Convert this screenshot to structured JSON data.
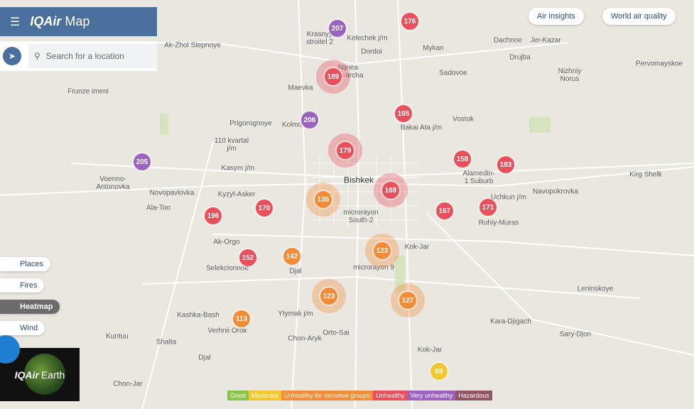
{
  "header": {
    "brand": "IQAir",
    "product": "Map"
  },
  "search": {
    "placeholder": "Search for a location"
  },
  "top_buttons": [
    "Air insights",
    "World air quality"
  ],
  "layers": [
    "Places",
    "Fires",
    "Heatmap",
    "Wind"
  ],
  "earth": {
    "brand": "IQAir",
    "product": "Earth"
  },
  "places": [
    "Ak-Zhol Stepnoye",
    "Krasnyy\nstroitel 2",
    "Kelechek j/m",
    "Dordoi",
    "Mykan",
    "Dachnoe",
    "Jer-Kazar",
    "Drujba",
    "Pervomayskoe",
    "Nizhniy\nNorus",
    "Sadovoe",
    "Nijnea\nAla-archa",
    "Maevka",
    "Frunze imeni",
    "Prigorognoye",
    "Kolmo",
    "Vostok",
    "Bakai Ata j/m",
    "110 kvartal\nj/m",
    "Kasym j/m",
    "Bishkek",
    "Voenno-\nAntonovka",
    "Novopavlovka",
    "Kyzyl-Asker",
    "Ala-Too",
    "Alamedin-\n1 Suburb",
    "Kirg Shelk",
    "Navopokrovka",
    "Uchkun j/m",
    "Ruhiy-Muras",
    "microrayon\nSouth-2",
    "Ak-Orgo",
    "Selekcionnoe",
    "Kok-Jar",
    "microrayon 9",
    "Djal",
    "Leninskoye",
    "Kashka-Bash",
    "Ytymak j/m",
    "Verhnii Orok",
    "Kuntuu",
    "Orto-Sai",
    "Kara-Djigach",
    "Sary-Djon",
    "Shalta",
    "Chon-Aryk",
    "Kok-Jar",
    "Djal",
    "Chon-Jar"
  ],
  "markers": [
    {
      "aqi": "207",
      "color": "#9b63c0"
    },
    {
      "aqi": "176",
      "color": "#e8505b"
    },
    {
      "aqi": "189",
      "color": "#e8505b"
    },
    {
      "aqi": "165",
      "color": "#e8505b"
    },
    {
      "aqi": "206",
      "color": "#9b63c0"
    },
    {
      "aqi": "179",
      "color": "#e8505b"
    },
    {
      "aqi": "205",
      "color": "#9b63c0"
    },
    {
      "aqi": "158",
      "color": "#e8505b"
    },
    {
      "aqi": "183",
      "color": "#e8505b"
    },
    {
      "aqi": "168",
      "color": "#e8505b"
    },
    {
      "aqi": "135",
      "color": "#f08c3a"
    },
    {
      "aqi": "170",
      "color": "#e8505b"
    },
    {
      "aqi": "196",
      "color": "#e8505b"
    },
    {
      "aqi": "167",
      "color": "#e8505b"
    },
    {
      "aqi": "171",
      "color": "#e8505b"
    },
    {
      "aqi": "123",
      "color": "#f08c3a"
    },
    {
      "aqi": "152",
      "color": "#e8505b"
    },
    {
      "aqi": "142",
      "color": "#f08c3a"
    },
    {
      "aqi": "123",
      "color": "#f08c3a"
    },
    {
      "aqi": "127",
      "color": "#f08c3a"
    },
    {
      "aqi": "113",
      "color": "#f08c3a"
    },
    {
      "aqi": "69",
      "color": "#f2c730"
    }
  ],
  "legend": [
    {
      "name": "Good",
      "color": "#8bc34a"
    },
    {
      "name": "Moderate",
      "color": "#f2c730"
    },
    {
      "name": "Unhealthy for sensitive groups",
      "color": "#f08c3a"
    },
    {
      "name": "Unhealthy",
      "color": "#e8505b"
    },
    {
      "name": "Very unhealthy",
      "color": "#9b63c0"
    },
    {
      "name": "Hazardous",
      "color": "#8f5566"
    }
  ]
}
